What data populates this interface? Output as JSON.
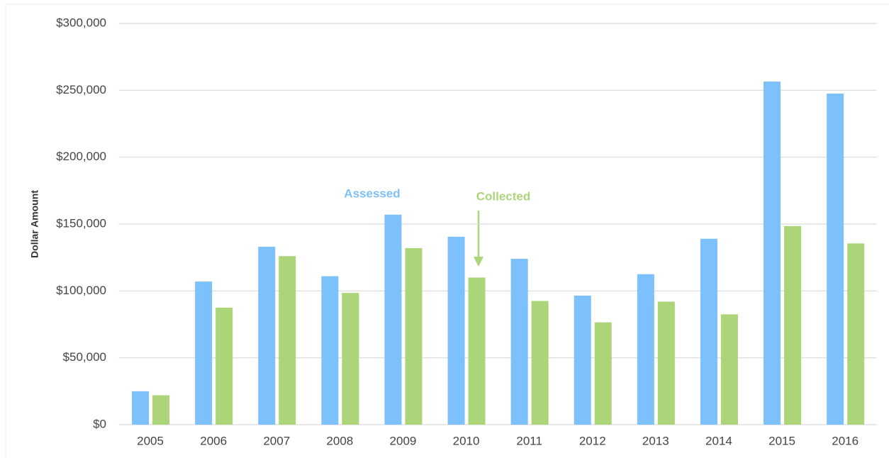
{
  "chart_data": {
    "type": "bar",
    "y_label": "Dollar Amount",
    "categories": [
      "2005",
      "2006",
      "2007",
      "2008",
      "2009",
      "2010",
      "2011",
      "2012",
      "2013",
      "2014",
      "2015",
      "2016"
    ],
    "series": [
      {
        "name": "Assessed",
        "color": "#7cc0fc",
        "values": [
          25000,
          107000,
          133000,
          111000,
          157000,
          140500,
          124000,
          96500,
          112500,
          139000,
          256500,
          247500
        ]
      },
      {
        "name": "Collected",
        "color": "#acd57a",
        "values": [
          22000,
          87500,
          126000,
          98500,
          132000,
          110000,
          92500,
          76500,
          92000,
          82500,
          148500,
          135500
        ]
      }
    ],
    "ylim": [
      0,
      300000
    ],
    "yticks": [
      {
        "value": 0,
        "label": "$0"
      },
      {
        "value": 50000,
        "label": "$50,000"
      },
      {
        "value": 100000,
        "label": "$100,000"
      },
      {
        "value": 150000,
        "label": "$150,000"
      },
      {
        "value": 200000,
        "label": "$200,000"
      },
      {
        "value": 250000,
        "label": "$250,000"
      },
      {
        "value": 300000,
        "label": "$300,000"
      }
    ],
    "grid": true
  }
}
